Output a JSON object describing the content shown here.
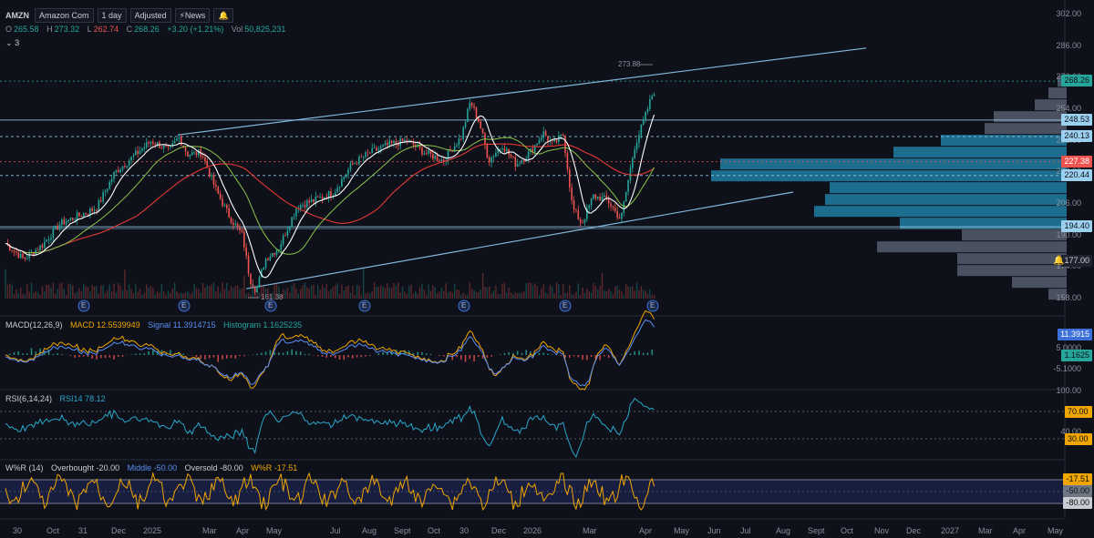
{
  "header": {
    "symbol": "AMZN",
    "name": "Amazon Com",
    "interval": "1 day",
    "adjustment": "Adjusted",
    "news_label": "News"
  },
  "ohlc": {
    "open_label": "O",
    "open": "265.58",
    "high_label": "H",
    "high": "273.32",
    "low_label": "L",
    "low": "262.74",
    "close_label": "C",
    "close": "268.26",
    "change": "+3.20 (+1.21%)",
    "volume_label": "Vol",
    "volume": "50,825,231"
  },
  "collapsed_count": "3",
  "price_axis": {
    "ticks": [
      "302.00",
      "286.00",
      "270.00",
      "254.00",
      "238.00",
      "222.00",
      "206.00",
      "190.00",
      "174.00",
      "158.00"
    ],
    "badges": [
      {
        "label": "268.26",
        "bg": "#26a69a",
        "fg": "#0e111a",
        "value": 268.26
      },
      {
        "label": "248.53",
        "bg": "#9bd0ee",
        "fg": "#0e111a",
        "value": 248.53
      },
      {
        "label": "240.13",
        "bg": "#9bd0ee",
        "fg": "#0e111a",
        "value": 240.13
      },
      {
        "label": "227.38",
        "bg": "#ef5350",
        "fg": "#ffffff",
        "value": 227.38
      },
      {
        "label": "220.44",
        "bg": "#9bd0ee",
        "fg": "#0e111a",
        "value": 220.44
      },
      {
        "label": "194.40",
        "bg": "#9bd0ee",
        "fg": "#0e111a",
        "value": 194.4
      },
      {
        "label": "177.00",
        "bg": "#1f2330",
        "fg": "#c9ccd3",
        "value": 177.0
      }
    ]
  },
  "annotations": {
    "high_marker": "273.88",
    "low_marker": "161.38",
    "earnings_icon": "E"
  },
  "macd": {
    "title": "MACD(12,26,9)",
    "macd_label": "MACD 12.5539949",
    "signal_label": "Signal 11.3914715",
    "hist_label": "Histogram 1.1625235",
    "badges": [
      {
        "label": "11.3915",
        "bg": "#3d6fd8",
        "fg": "#ffffff"
      },
      {
        "label": "1.1625",
        "bg": "#26a69a",
        "fg": "#0e111a"
      }
    ],
    "ticks": [
      "5.0000",
      "-5.1000"
    ]
  },
  "rsi": {
    "title": "RSI(6,14,24)",
    "rsi_label": "RSI14 78.12",
    "ticks": [
      "100.00",
      "40.00"
    ],
    "badges": [
      {
        "label": "70.00",
        "bg": "#f0a500",
        "fg": "#0e111a"
      },
      {
        "label": "30.00",
        "bg": "#f0a500",
        "fg": "#0e111a"
      }
    ]
  },
  "willr": {
    "title": "W%R (14)",
    "overbought_label": "Overbought -20.00",
    "middle_label": "Middle -50.00",
    "oversold_label": "Oversold -80.00",
    "value_label": "W%R -17.51",
    "badges": [
      {
        "label": "-17.51",
        "bg": "#f0a500",
        "fg": "#0e111a"
      },
      {
        "label": "-50.00",
        "bg": "#6f7683",
        "fg": "#0e111a"
      },
      {
        "label": "-80.00",
        "bg": "#c9ccd3",
        "fg": "#0e111a"
      }
    ]
  },
  "time_axis": [
    "30",
    "Oct",
    "31",
    "Dec",
    "2025",
    "Mar",
    "Apr",
    "May",
    "Jul",
    "Aug",
    "Sept",
    "Oct",
    "30",
    "Dec",
    "2026",
    "Mar",
    "Apr",
    "May",
    "Jun",
    "Jul",
    "Aug",
    "Sept",
    "Oct",
    "Nov",
    "Dec",
    "2027",
    "Mar",
    "Apr",
    "May"
  ],
  "colors": {
    "bull": "#26a69a",
    "bear": "#ef5350",
    "ma_fast": "#ffffff",
    "ma_mid": "#8bc34a",
    "ma_slow": "#e53935",
    "trend": "#7fb6d9",
    "volume_profile": "#1d6e8e",
    "volume_profile_grey": "#4a5160",
    "accent_orange": "#e8803a"
  }
}
